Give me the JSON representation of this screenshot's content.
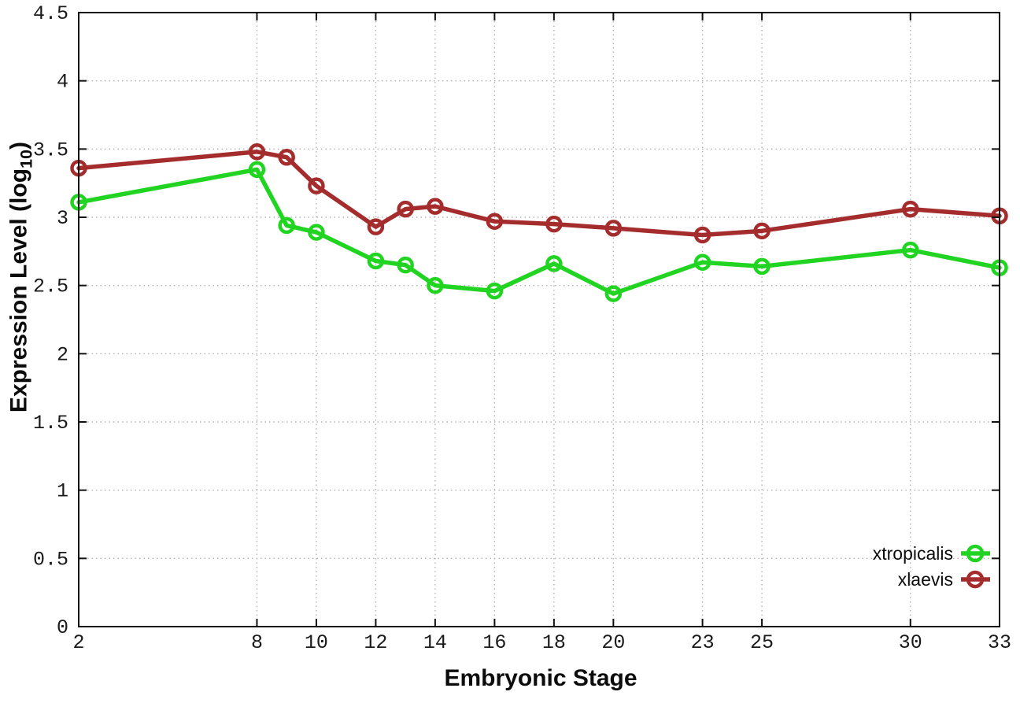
{
  "figure": {
    "x_axis_title": "Embryonic Stage",
    "y_axis_title_prefix": "Expression Level (log",
    "y_axis_title_subscript": "10",
    "y_axis_title_suffix": ")"
  },
  "style": {
    "background": "#ffffff",
    "border_color": "#111111",
    "tick_color": "#111111",
    "grid_color": "#b4b4b4",
    "tick_label_color": "#1a1a1a"
  },
  "chart_data": {
    "type": "line",
    "title": "",
    "xlabel": "Embryonic Stage",
    "ylabel": "Expression Level (log10)",
    "xlim": [
      2,
      33
    ],
    "ylim": [
      0,
      4.5
    ],
    "x_ticks": [
      2,
      8,
      10,
      12,
      14,
      16,
      18,
      20,
      23,
      25,
      30,
      33
    ],
    "y_ticks": [
      0,
      0.5,
      1,
      1.5,
      2,
      2.5,
      3,
      3.5,
      4,
      4.5
    ],
    "grid": true,
    "legend_position": "inside-bottom-right",
    "marker": "open-circle",
    "x": [
      2,
      8,
      9,
      10,
      12,
      13,
      14,
      16,
      18,
      20,
      23,
      25,
      30,
      33
    ],
    "series": [
      {
        "name": "xtropicalis",
        "color": "#22d422",
        "values": [
          3.11,
          3.35,
          2.94,
          2.89,
          2.68,
          2.65,
          2.5,
          2.46,
          2.66,
          2.44,
          2.67,
          2.64,
          2.76,
          2.63
        ]
      },
      {
        "name": "xlaevis",
        "color": "#a42c2c",
        "values": [
          3.36,
          3.48,
          3.44,
          3.23,
          2.93,
          3.06,
          3.08,
          2.97,
          2.95,
          2.92,
          2.87,
          2.9,
          3.06,
          3.01
        ]
      }
    ]
  }
}
